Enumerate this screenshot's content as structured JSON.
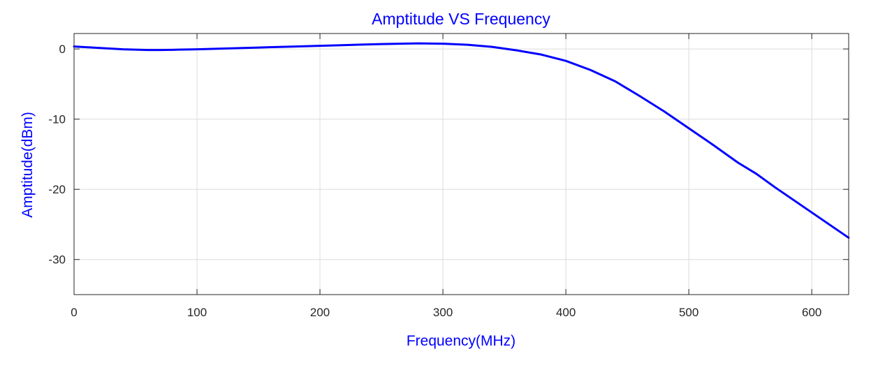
{
  "chart_data": {
    "type": "line",
    "title": "Amptitude VS Frequency",
    "xlabel": "Frequency(MHz)",
    "ylabel": "Amptitude(dBm)",
    "xlim": [
      0,
      630
    ],
    "ylim": [
      -35,
      2.2
    ],
    "xticks": [
      0,
      100,
      200,
      300,
      400,
      500,
      600
    ],
    "xtick_labels": [
      "0",
      "100",
      "200",
      "300",
      "400",
      "500",
      "600"
    ],
    "yticks": [
      0,
      -10,
      -20,
      -30
    ],
    "ytick_labels": [
      "0",
      "-10",
      "-20",
      "-30"
    ],
    "grid": true,
    "series": [
      {
        "color": "#0000ff",
        "x": [
          0,
          20,
          40,
          60,
          70,
          80,
          100,
          120,
          150,
          180,
          200,
          220,
          250,
          280,
          300,
          320,
          340,
          360,
          380,
          400,
          420,
          440,
          460,
          480,
          500,
          520,
          540,
          555,
          570,
          590,
          610,
          630
        ],
        "y": [
          0.35,
          0.15,
          -0.05,
          -0.15,
          -0.15,
          -0.12,
          -0.05,
          0.05,
          0.2,
          0.35,
          0.45,
          0.55,
          0.7,
          0.8,
          0.75,
          0.6,
          0.3,
          -0.2,
          -0.8,
          -1.7,
          -3.0,
          -4.6,
          -6.7,
          -8.9,
          -11.3,
          -13.7,
          -16.2,
          -17.8,
          -19.7,
          -22.1,
          -24.5,
          -26.9
        ]
      }
    ],
    "colors": {
      "line": "#0000ff",
      "grid": "#dcdcdc",
      "axes": "#262626",
      "text": "#0000ff"
    }
  }
}
